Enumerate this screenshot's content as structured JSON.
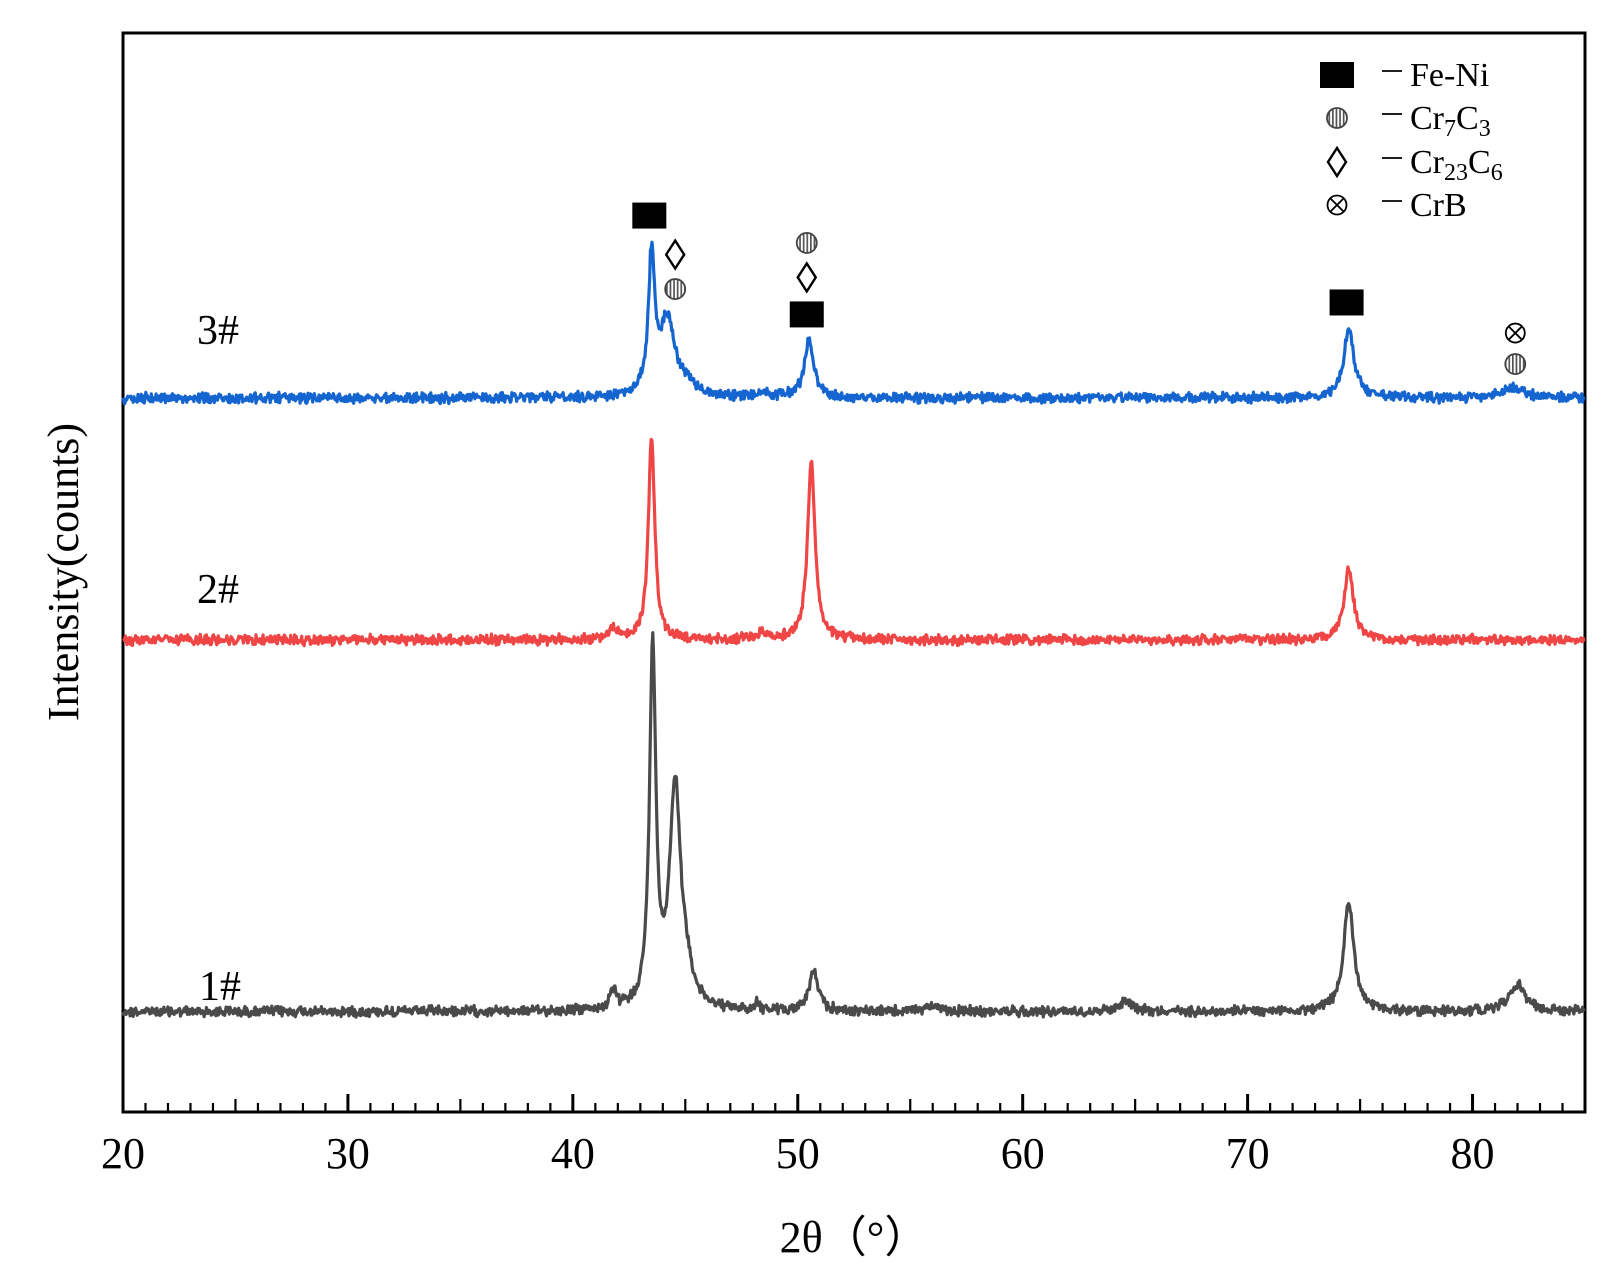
{
  "chart_data": {
    "type": "line",
    "xlabel": "2θ（°）",
    "ylabel": "Intensity(counts)",
    "xlim": [
      20,
      85
    ],
    "x_ticks": [
      "20",
      "30",
      "40",
      "50",
      "60",
      "70",
      "80"
    ],
    "y_ticks_shown": false,
    "grid": false,
    "legend_position": "top-right",
    "legend": [
      {
        "symbol": "filled-square",
        "label": "Fe-Ni"
      },
      {
        "symbol": "striped-circle",
        "label": "Cr7C3"
      },
      {
        "symbol": "diamond",
        "label": "Cr23C6"
      },
      {
        "symbol": "circled-cross",
        "label": "CrB"
      }
    ],
    "series": [
      {
        "name": "1#",
        "color": "#4a4a4a",
        "baseline": 0.08,
        "peaks": [
          {
            "x": 41.8,
            "h": 0.05,
            "w": 0.15
          },
          {
            "x": 43.55,
            "h": 1.0,
            "w": 0.17
          },
          {
            "x": 44.55,
            "h": 0.63,
            "w": 0.3
          },
          {
            "x": 45.1,
            "h": 0.06,
            "w": 0.3
          },
          {
            "x": 48.2,
            "h": 0.025,
            "w": 0.1
          },
          {
            "x": 50.7,
            "h": 0.11,
            "w": 0.25
          },
          {
            "x": 55.9,
            "h": 0.02,
            "w": 0.25
          },
          {
            "x": 64.6,
            "h": 0.03,
            "w": 0.4
          },
          {
            "x": 74.5,
            "h": 0.31,
            "w": 0.27
          },
          {
            "x": 82.0,
            "h": 0.075,
            "w": 0.45
          }
        ]
      },
      {
        "name": "2#",
        "color": "#f04545",
        "baseline": 0.0,
        "peaks": [
          {
            "x": 41.8,
            "h": 0.03,
            "w": 0.3
          },
          {
            "x": 43.5,
            "h": 0.64,
            "w": 0.17
          },
          {
            "x": 48.5,
            "h": 0.02,
            "w": 0.3
          },
          {
            "x": 50.6,
            "h": 0.56,
            "w": 0.2
          },
          {
            "x": 74.5,
            "h": 0.22,
            "w": 0.25
          }
        ]
      },
      {
        "name": "3#",
        "color": "#1565d0",
        "baseline": 0.0,
        "peaks": [
          {
            "x": 43.5,
            "h": 0.44,
            "w": 0.17
          },
          {
            "x": 44.2,
            "h": 0.24,
            "w": 0.38
          },
          {
            "x": 45.0,
            "h": 0.035,
            "w": 0.6
          },
          {
            "x": 48.4,
            "h": 0.015,
            "w": 0.3
          },
          {
            "x": 50.5,
            "h": 0.18,
            "w": 0.25
          },
          {
            "x": 74.5,
            "h": 0.22,
            "w": 0.28
          },
          {
            "x": 81.8,
            "h": 0.03,
            "w": 0.7
          }
        ]
      }
    ],
    "annotations": [
      {
        "series": "3#",
        "x": 43.4,
        "symbols": [
          "filled-square"
        ]
      },
      {
        "series": "3#",
        "x": 44.55,
        "symbols": [
          "striped-circle",
          "diamond"
        ]
      },
      {
        "series": "3#",
        "x": 50.4,
        "symbols": [
          "filled-square",
          "diamond",
          "striped-circle"
        ]
      },
      {
        "series": "3#",
        "x": 74.4,
        "symbols": [
          "filled-square"
        ]
      },
      {
        "series": "3#",
        "x": 81.9,
        "symbols": [
          "striped-circle",
          "circled-cross"
        ]
      }
    ]
  }
}
